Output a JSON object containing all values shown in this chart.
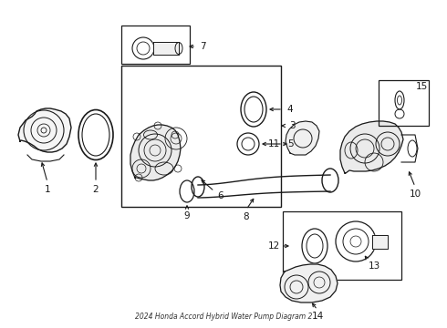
{
  "title": "2024 Honda Accord Hybrid Water Pump Diagram 2",
  "bg_color": "#ffffff",
  "line_color": "#1a1a1a",
  "fig_width": 4.9,
  "fig_height": 3.6,
  "dpi": 100
}
